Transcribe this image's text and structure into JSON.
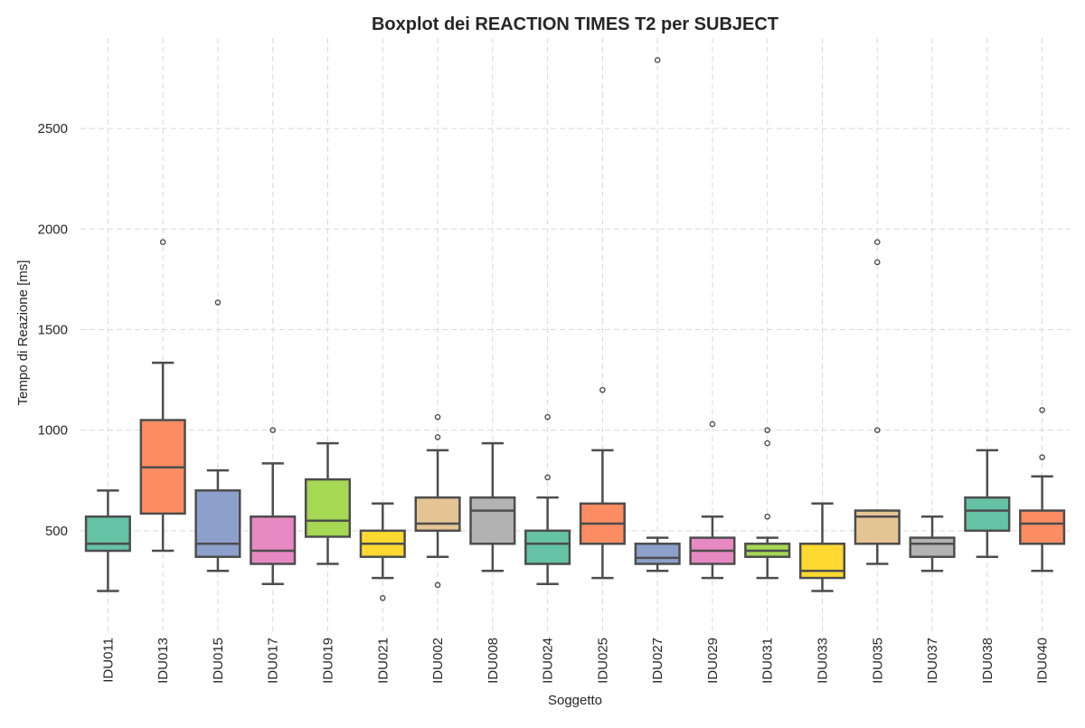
{
  "chart_data": {
    "type": "box",
    "title": "Boxplot dei REACTION TIMES T2 per SUBJECT",
    "xlabel": "Soggetto",
    "ylabel": "Tempo di Reazione [ms]",
    "ylim": [
      0,
      2950
    ],
    "yticks": [
      500,
      1000,
      1500,
      2000,
      2500
    ],
    "grid": true,
    "categories": [
      "IDU011",
      "IDU013",
      "IDU015",
      "IDU017",
      "IDU019",
      "IDU021",
      "IDU002",
      "IDU008",
      "IDU024",
      "IDU025",
      "IDU027",
      "IDU029",
      "IDU031",
      "IDU033",
      "IDU035",
      "IDU037",
      "IDU038",
      "IDU040"
    ],
    "colors": [
      "#66c2a5",
      "#fc8d62",
      "#8da0cb",
      "#e78ac3",
      "#a6d854",
      "#ffd92f",
      "#e5c494",
      "#b3b3b3",
      "#66c2a5",
      "#fc8d62",
      "#8da0cb",
      "#e78ac3",
      "#a6d854",
      "#ffd92f",
      "#e5c494",
      "#b3b3b3",
      "#66c2a5",
      "#fc8d62"
    ],
    "boxes": [
      {
        "whislo": 200,
        "q1": 400,
        "med": 435,
        "q3": 570,
        "whishi": 700,
        "fliers": []
      },
      {
        "whislo": 400,
        "q1": 585,
        "med": 815,
        "q3": 1050,
        "whishi": 1335,
        "fliers": [
          1935
        ]
      },
      {
        "whislo": 300,
        "q1": 370,
        "med": 435,
        "q3": 700,
        "whishi": 800,
        "fliers": [
          1635
        ]
      },
      {
        "whislo": 235,
        "q1": 335,
        "med": 400,
        "q3": 570,
        "whishi": 835,
        "fliers": [
          1000
        ]
      },
      {
        "whislo": 335,
        "q1": 470,
        "med": 550,
        "q3": 755,
        "whishi": 935,
        "fliers": []
      },
      {
        "whislo": 265,
        "q1": 370,
        "med": 435,
        "q3": 500,
        "whishi": 635,
        "fliers": [
          165
        ]
      },
      {
        "whislo": 370,
        "q1": 500,
        "med": 535,
        "q3": 665,
        "whishi": 900,
        "fliers": [
          1065,
          965,
          230
        ]
      },
      {
        "whislo": 300,
        "q1": 435,
        "med": 600,
        "q3": 665,
        "whishi": 935,
        "fliers": []
      },
      {
        "whislo": 235,
        "q1": 335,
        "med": 435,
        "q3": 500,
        "whishi": 665,
        "fliers": [
          1065,
          765
        ]
      },
      {
        "whislo": 265,
        "q1": 435,
        "med": 535,
        "q3": 635,
        "whishi": 900,
        "fliers": [
          1200
        ]
      },
      {
        "whislo": 300,
        "q1": 335,
        "med": 365,
        "q3": 435,
        "whishi": 465,
        "fliers": [
          2840
        ]
      },
      {
        "whislo": 265,
        "q1": 335,
        "med": 400,
        "q3": 465,
        "whishi": 570,
        "fliers": [
          1030
        ]
      },
      {
        "whislo": 265,
        "q1": 370,
        "med": 400,
        "q3": 435,
        "whishi": 465,
        "fliers": [
          1000,
          935,
          570
        ]
      },
      {
        "whislo": 200,
        "q1": 265,
        "med": 300,
        "q3": 435,
        "whishi": 635,
        "fliers": []
      },
      {
        "whislo": 335,
        "q1": 435,
        "med": 570,
        "q3": 600,
        "whishi": 600,
        "fliers": [
          1935,
          1835,
          1000
        ]
      },
      {
        "whislo": 300,
        "q1": 370,
        "med": 435,
        "q3": 465,
        "whishi": 570,
        "fliers": []
      },
      {
        "whislo": 370,
        "q1": 500,
        "med": 600,
        "q3": 665,
        "whishi": 900,
        "fliers": []
      },
      {
        "whislo": 300,
        "q1": 435,
        "med": 535,
        "q3": 600,
        "whishi": 770,
        "fliers": [
          1100,
          865
        ]
      }
    ]
  }
}
